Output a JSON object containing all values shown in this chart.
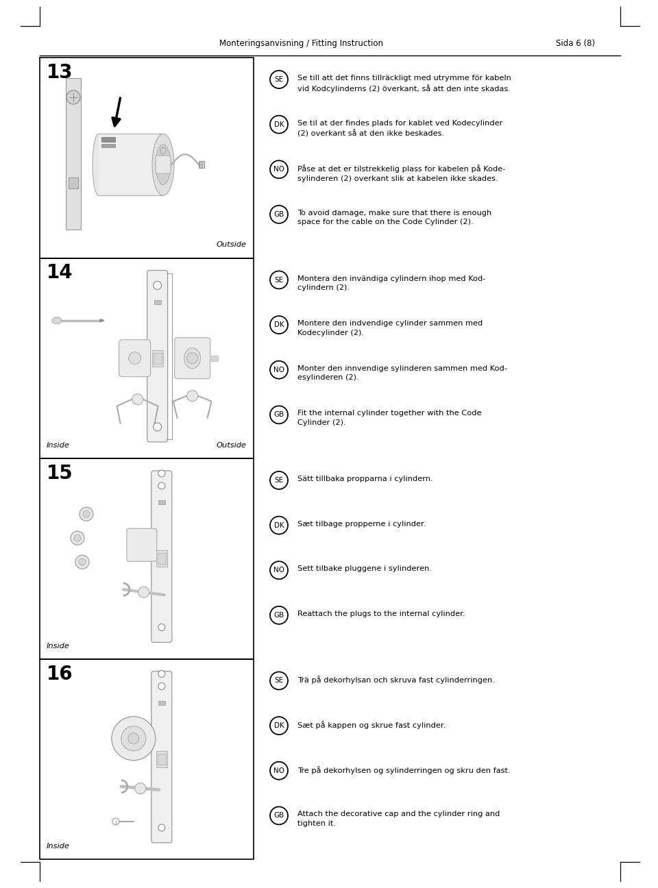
{
  "page_header_left": "Monteringsanvisning / Fitting Instruction",
  "page_header_right": "Sida 6 (8)",
  "bg_color": "#ffffff",
  "steps": [
    {
      "number": "13",
      "texts": [
        {
          "lang": "SE",
          "text": "Se till att det finns tillräckligt med utrymme för kabeln\nvid Kodcylinderns (2) överkant, så att den inte skadas."
        },
        {
          "lang": "DK",
          "text": "Se til at der findes plads for kablet ved Kodecylinder\n(2) overkant så at den ikke beskades."
        },
        {
          "lang": "NO",
          "text": "Påse at det er tilstrekkelig plass for kabelen på Kode-\nsylinderen (2) overkant slik at kabelen ikke skades."
        },
        {
          "lang": "GB",
          "text": "To avoid damage, make sure that there is enough\nspace for the cable on the Code Cylinder (2)."
        }
      ],
      "label_bottom_right": "Outside"
    },
    {
      "number": "14",
      "texts": [
        {
          "lang": "SE",
          "text": "Montera den invändiga cylindern ihop med Kod-\ncylindern (2)."
        },
        {
          "lang": "DK",
          "text": "Montere den indvendige cylinder sammen med\nKodecylinder (2)."
        },
        {
          "lang": "NO",
          "text": "Monter den innvendige sylinderen sammen med Kod-\nesylinderen (2)."
        },
        {
          "lang": "GB",
          "text": "Fit the internal cylinder together with the Code\nCylinder (2)."
        }
      ],
      "label_bottom_left": "Inside",
      "label_bottom_right": "Outside"
    },
    {
      "number": "15",
      "texts": [
        {
          "lang": "SE",
          "text": "Sätt tillbaka propparna i cylindern."
        },
        {
          "lang": "DK",
          "text": "Sæt tilbage propperne i cylinder."
        },
        {
          "lang": "NO",
          "text": "Sett tilbake pluggene i sylinderen."
        },
        {
          "lang": "GB",
          "text": "Reattach the plugs to the internal cylinder."
        }
      ],
      "label_bottom_left": "Inside"
    },
    {
      "number": "16",
      "texts": [
        {
          "lang": "SE",
          "text": "Trä på dekorhylsan och skruva fast cylinderringen."
        },
        {
          "lang": "DK",
          "text": "Sæt på kappen og skrue fast cylinder."
        },
        {
          "lang": "NO",
          "text": "Tre på dekorhylsen og sylinderringen og skru den fast."
        },
        {
          "lang": "GB",
          "text": "Attach the decorative cap and the cylinder ring and\ntighten it."
        }
      ],
      "label_bottom_left": "Inside"
    }
  ],
  "text_font_size": 8.2,
  "step_num_font_size": 20,
  "header_font_size": 8.5
}
